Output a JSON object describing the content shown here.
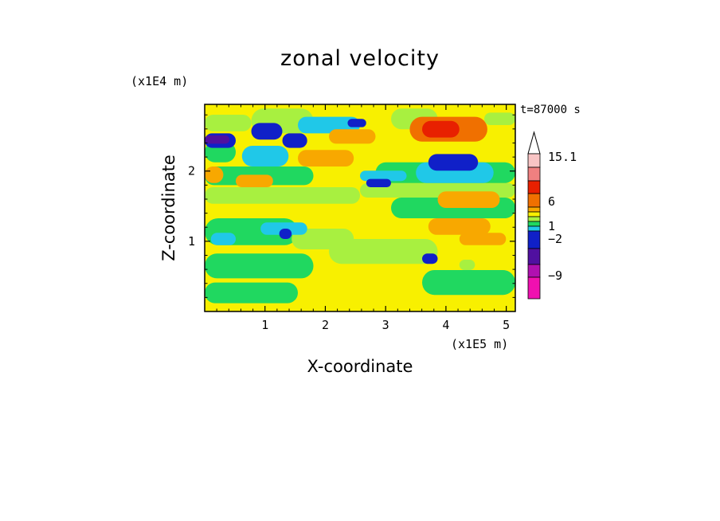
{
  "chart_data": {
    "type": "heatmap",
    "title": "zonal velocity",
    "xlabel": "X-coordinate",
    "ylabel": "Z-coordinate",
    "x_unit": "(x1E5 m)",
    "y_unit": "(x1E4 m)",
    "annotation": "t=87000 s",
    "xlim": [
      0,
      5.15
    ],
    "ylim": [
      0,
      2.95
    ],
    "x_ticks": [
      "1",
      "2",
      "3",
      "4",
      "5"
    ],
    "y_ticks": [
      "1",
      "2"
    ],
    "colorbar": {
      "labels": [
        "15.1",
        "6",
        "1",
        "−2",
        "−9"
      ],
      "levels_top_to_bottom": [
        {
          "color": "#f8c4c4"
        },
        {
          "color": "#f08080"
        },
        {
          "color": "#e82000"
        },
        {
          "color": "#f07000"
        },
        {
          "color": "#f8a800"
        },
        {
          "color": "#f8f000"
        },
        {
          "color": "#a8f040"
        },
        {
          "color": "#20d860"
        },
        {
          "color": "#20c8e8"
        },
        {
          "color": "#1020c8"
        },
        {
          "color": "#5010a0"
        },
        {
          "color": "#b010b0"
        },
        {
          "color": "#f010b0"
        }
      ]
    }
  }
}
